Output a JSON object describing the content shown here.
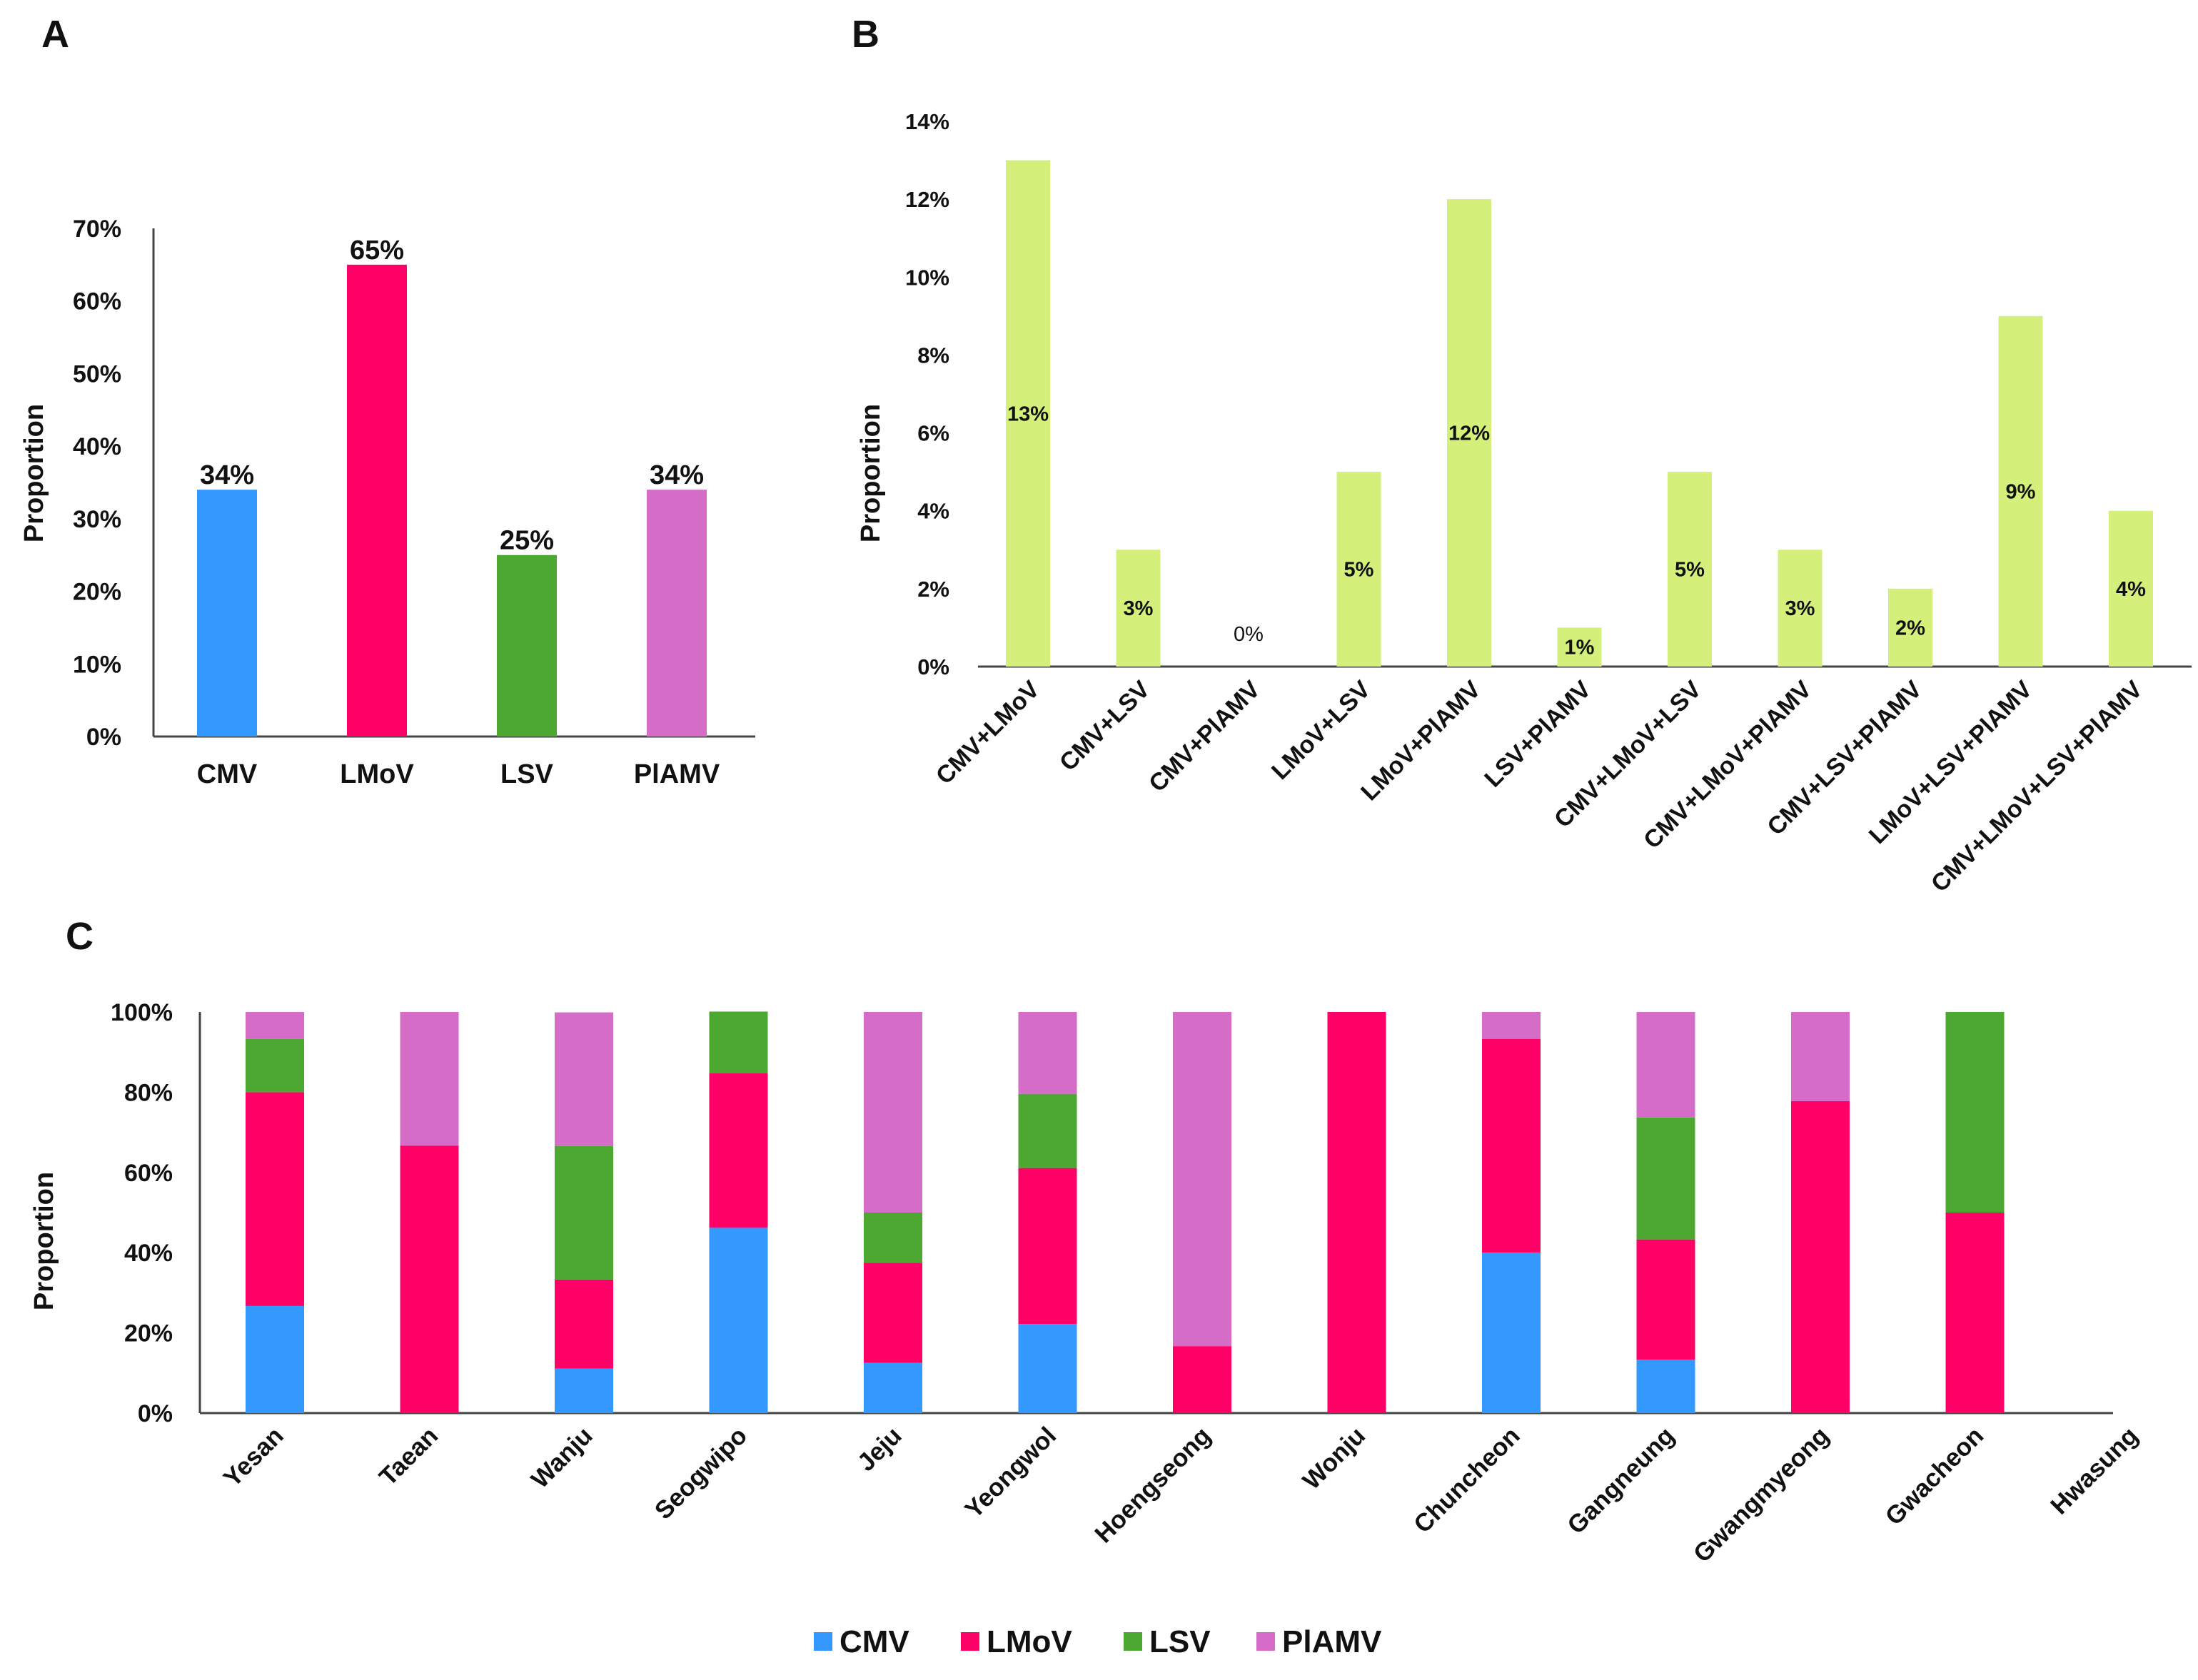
{
  "panels": [
    {
      "letter": "A"
    },
    {
      "letter": "B"
    },
    {
      "letter": "C"
    }
  ],
  "chart_data": [
    {
      "panel": "A",
      "type": "bar",
      "ylabel": "Proportion",
      "categories": [
        "CMV",
        "LMoV",
        "LSV",
        "PlAMV"
      ],
      "values": [
        34,
        65,
        25,
        34
      ],
      "data_labels": [
        "34%",
        "65%",
        "25%",
        "34%"
      ],
      "colors": [
        "#3399ff",
        "#ff0066",
        "#4da832",
        "#d56cc8"
      ],
      "yticks": [
        "0%",
        "10%",
        "20%",
        "30%",
        "40%",
        "50%",
        "60%",
        "70%"
      ],
      "ylim": [
        0,
        70
      ]
    },
    {
      "panel": "B",
      "type": "bar",
      "ylabel": "Proportion",
      "categories": [
        "CMV+LMoV",
        "CMV+LSV",
        "CMV+PlAMV",
        "LMoV+LSV",
        "LMoV+PlAMV",
        "LSV+PlAMV",
        "CMV+LMoV+LSV",
        "CMV+LMoV+PlAMV",
        "CMV+LSV+PlAMV",
        "LMoV+LSV+PlAMV",
        "CMV+LMoV+LSV+PlAMV"
      ],
      "values": [
        13,
        3,
        0,
        5,
        12,
        1,
        5,
        3,
        2,
        9,
        4
      ],
      "data_labels": [
        "13%",
        "3%",
        "0%",
        "5%",
        "12%",
        "1%",
        "5%",
        "3%",
        "2%",
        "9%",
        "4%"
      ],
      "color": "#d4f07a",
      "yticks": [
        "0%",
        "2%",
        "4%",
        "6%",
        "8%",
        "10%",
        "12%",
        "14%"
      ],
      "ylim": [
        0,
        14
      ]
    },
    {
      "panel": "C",
      "type": "bar",
      "stacked": true,
      "ylabel": "Proportion",
      "categories": [
        "Yesan",
        "Taean",
        "Wanju",
        "Seogwipo",
        "Jeju",
        "Yeongwol",
        "Hoengseong",
        "Wonju",
        "Chuncheon",
        "Gangneung",
        "Gwangmyeong",
        "Gwacheon",
        "Hwasung"
      ],
      "series": [
        {
          "name": "CMV",
          "color": "#3399ff",
          "values": [
            26.7,
            0,
            11.1,
            46.2,
            12.5,
            22.2,
            0,
            0,
            40,
            13.3,
            0,
            0,
            0
          ]
        },
        {
          "name": "LMoV",
          "color": "#ff0066",
          "values": [
            53.3,
            66.7,
            22.2,
            38.5,
            25,
            38.9,
            16.7,
            100,
            53.3,
            30,
            77.8,
            50,
            0
          ]
        },
        {
          "name": "LSV",
          "color": "#4da832",
          "values": [
            13.3,
            0,
            33.3,
            15.4,
            12.5,
            18.5,
            0,
            0,
            0,
            30.4,
            0,
            50,
            0
          ]
        },
        {
          "name": "PlAMV",
          "color": "#d56cc8",
          "values": [
            6.7,
            33.3,
            33.3,
            0,
            50,
            20.4,
            83.3,
            0,
            6.7,
            26.3,
            22.2,
            0,
            0
          ]
        }
      ],
      "yticks": [
        "0%",
        "20%",
        "40%",
        "60%",
        "80%",
        "100%"
      ],
      "ylim": [
        0,
        100
      ],
      "legend": [
        "CMV",
        "LMoV",
        "LSV",
        "PlAMV"
      ],
      "legend_position": "bottom"
    }
  ]
}
